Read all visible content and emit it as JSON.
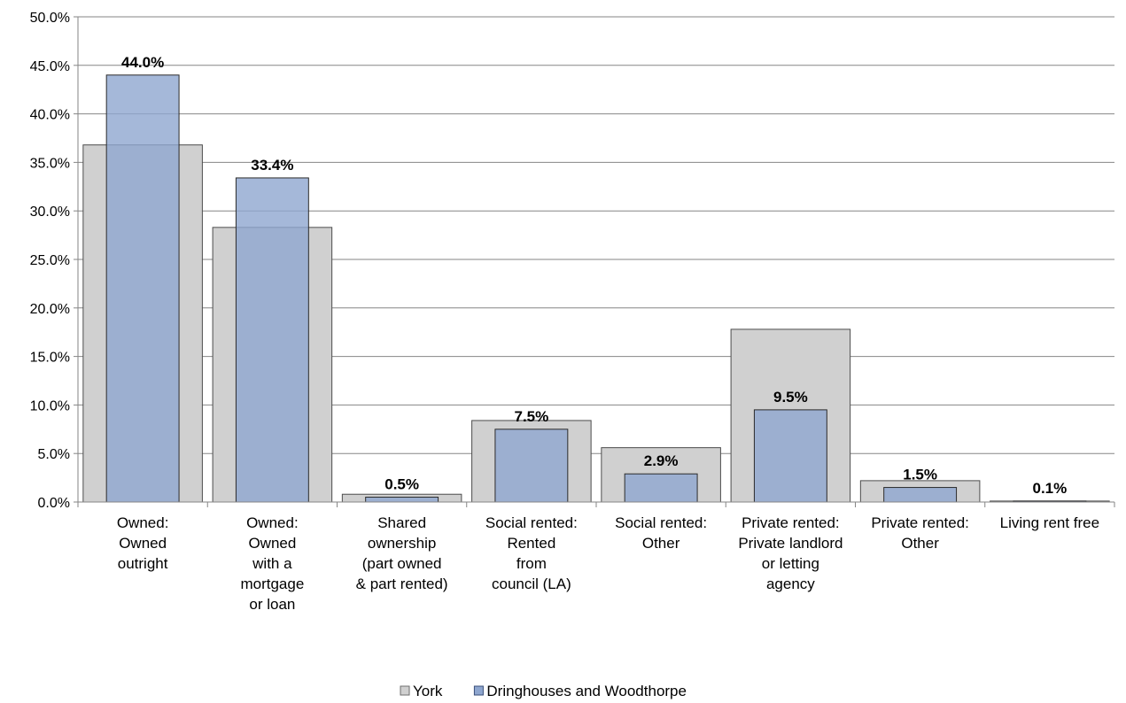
{
  "chart_data": {
    "type": "bar",
    "categories": [
      [
        "Owned:",
        "Owned",
        "outright"
      ],
      [
        "Owned:",
        "Owned",
        "with a",
        "mortgage",
        "or loan"
      ],
      [
        "Shared",
        "ownership",
        "(part owned",
        "& part rented)"
      ],
      [
        "Social rented:",
        "Rented",
        "from",
        "council (LA)"
      ],
      [
        "Social rented:",
        "Other"
      ],
      [
        "Private rented:",
        "Private landlord",
        "or letting",
        "agency"
      ],
      [
        "Private rented:",
        "Other"
      ],
      [
        "Living rent free"
      ]
    ],
    "series": [
      {
        "name": "York",
        "color": "#d0d0d0",
        "values": [
          36.8,
          28.3,
          0.8,
          8.4,
          5.6,
          17.8,
          2.2,
          0.1
        ]
      },
      {
        "name": "Dringhouses and Woodthorpe",
        "color": "#8ea6cf",
        "values": [
          44.0,
          33.4,
          0.5,
          7.5,
          2.9,
          9.5,
          1.5,
          0.1
        ]
      }
    ],
    "data_labels": [
      "44.0%",
      "33.4%",
      "0.5%",
      "7.5%",
      "2.9%",
      "9.5%",
      "1.5%",
      "0.1%"
    ],
    "y_ticks": [
      "0.0%",
      "5.0%",
      "10.0%",
      "15.0%",
      "20.0%",
      "25.0%",
      "30.0%",
      "35.0%",
      "40.0%",
      "45.0%",
      "50.0%"
    ],
    "ylim": [
      0,
      50
    ],
    "grid": true,
    "legend_position": "bottom"
  }
}
